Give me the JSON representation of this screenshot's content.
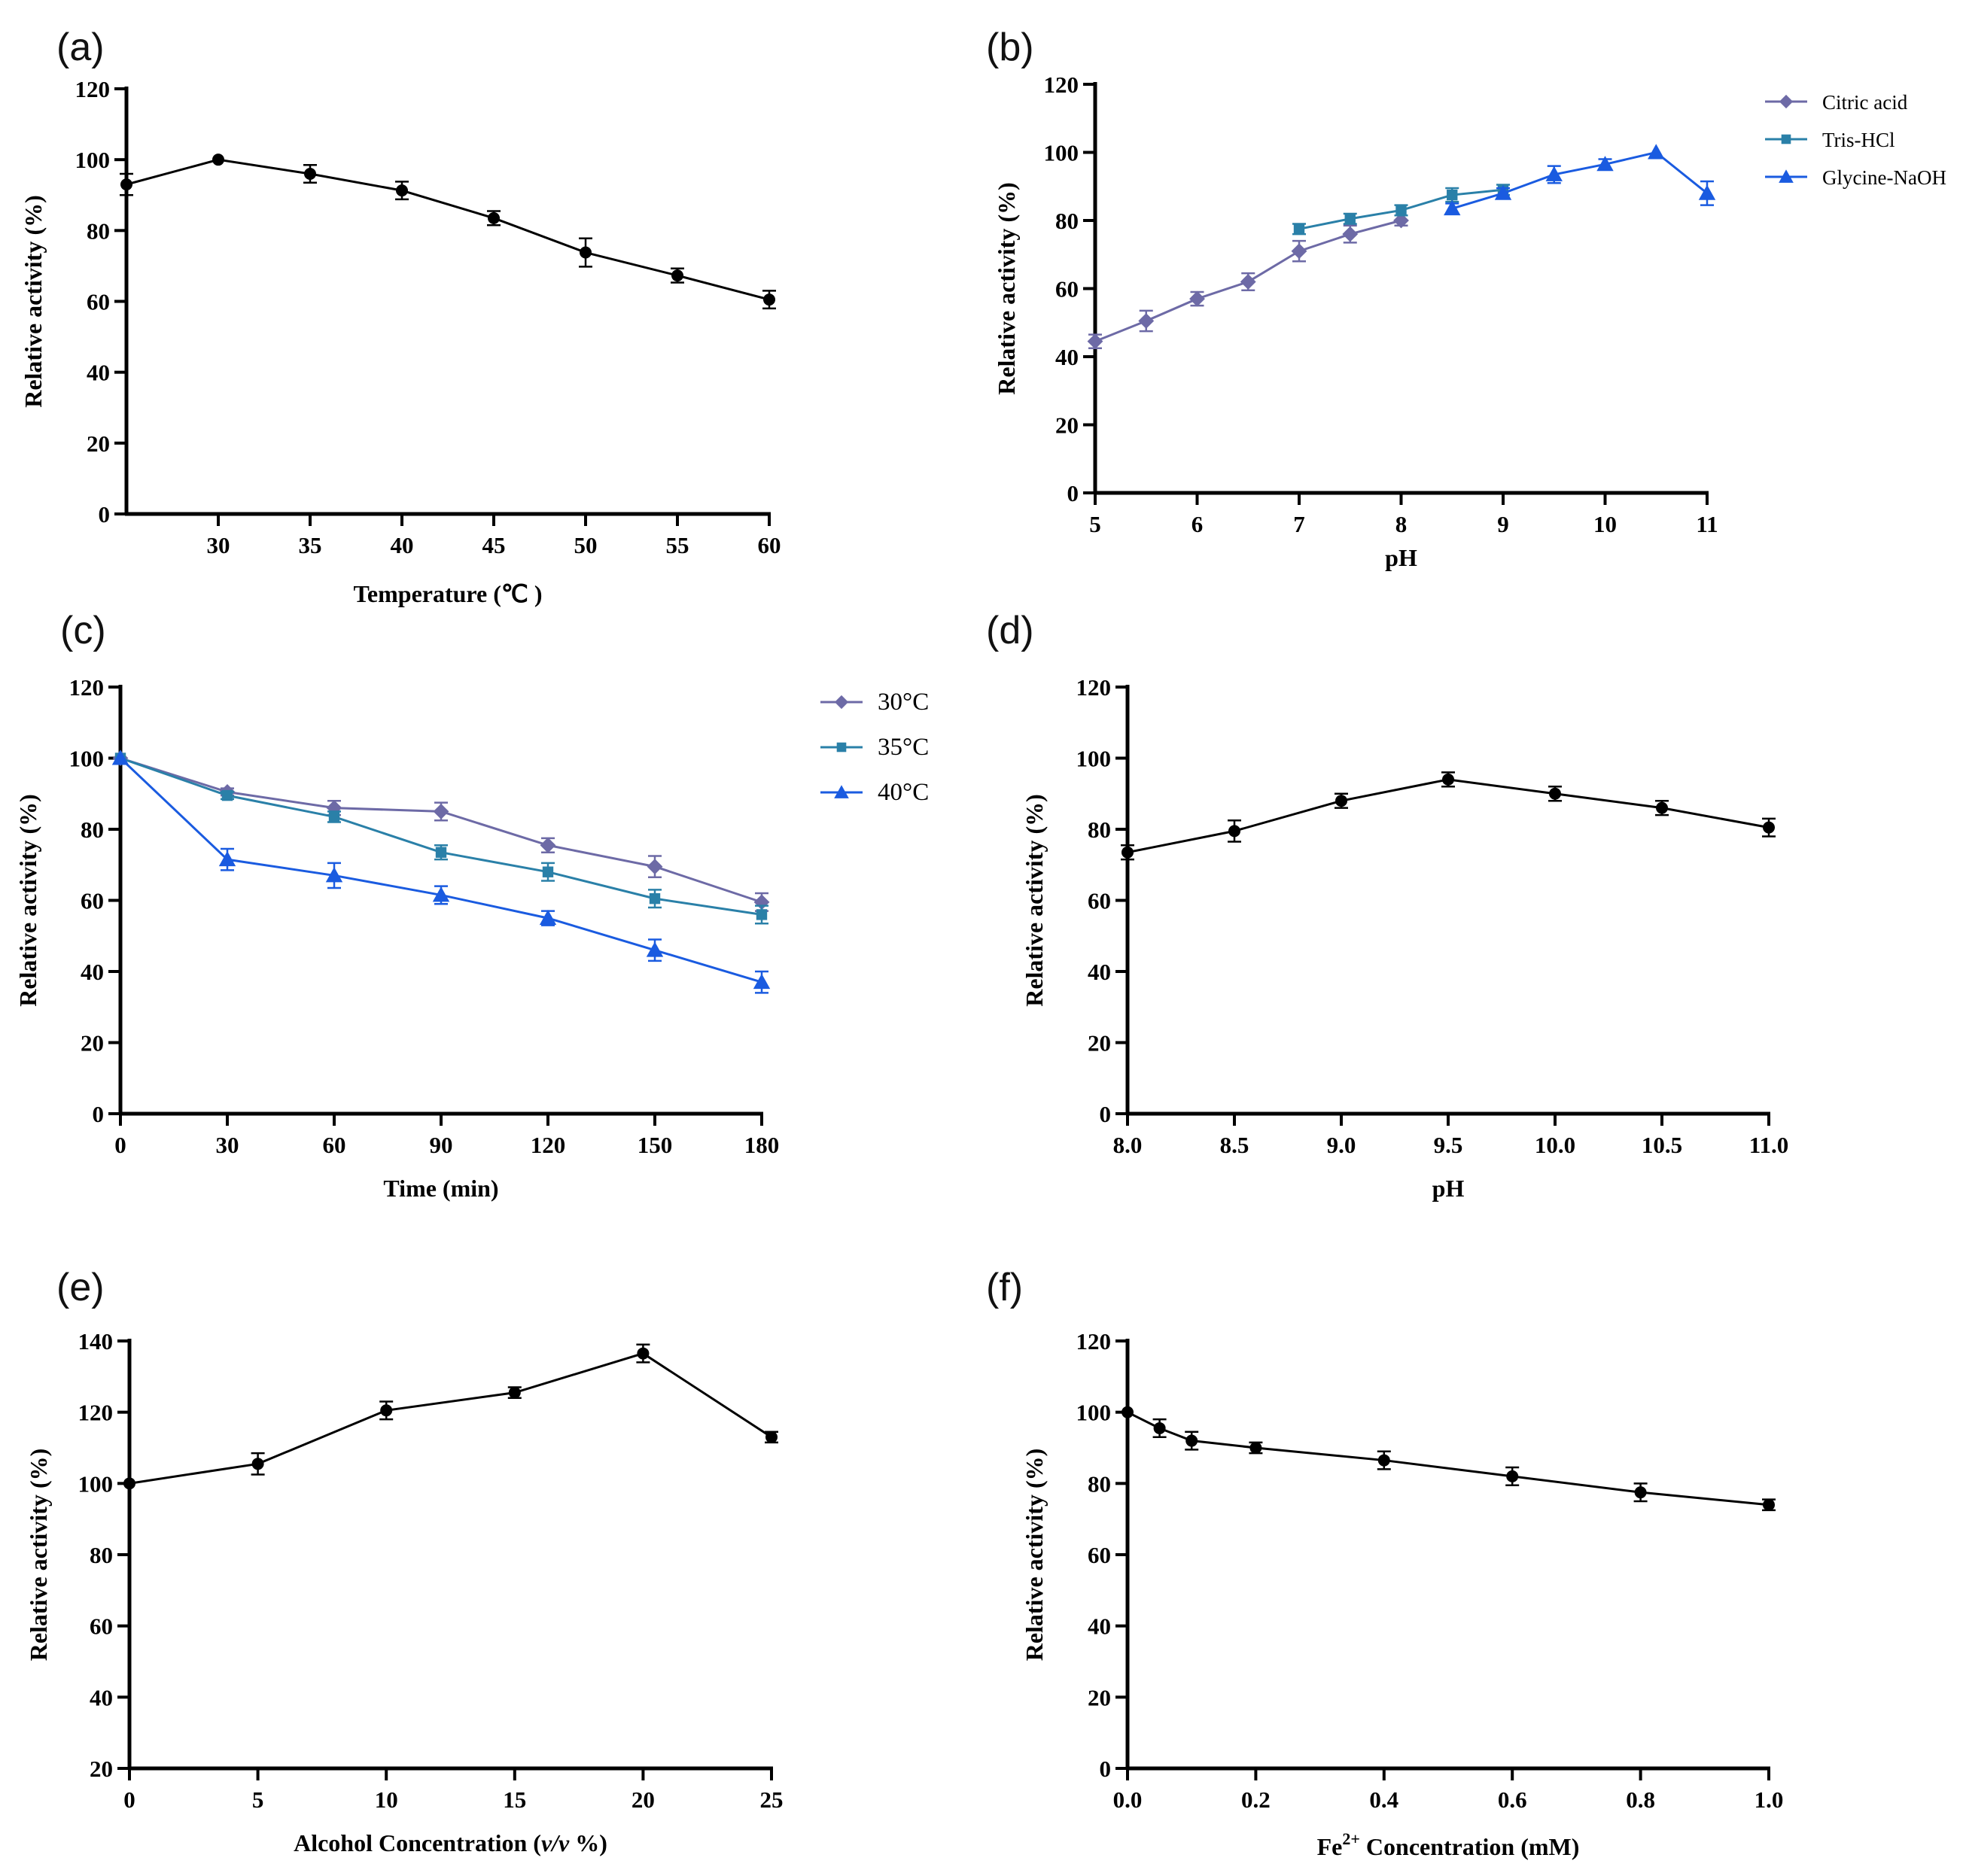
{
  "chart_data": [
    {
      "id": "a",
      "type": "line",
      "panel_label": "(a)",
      "xlabel": "Temperature (℃ )",
      "ylabel": "Relative activity (%)",
      "xlim": [
        25,
        60
      ],
      "ylim": [
        0,
        120
      ],
      "xticks": [
        30,
        35,
        40,
        45,
        50,
        55,
        60
      ],
      "xtick_labels": [
        "30",
        "35",
        "40",
        "45",
        "50",
        "55",
        "60"
      ],
      "yticks": [
        0,
        20,
        40,
        60,
        80,
        100,
        120
      ],
      "ytick_labels": [
        "0",
        "20",
        "40",
        "60",
        "80",
        "100",
        "120"
      ],
      "legend": false,
      "series": [
        {
          "name": "activity",
          "color": "#000000",
          "marker": "circle",
          "x": [
            25,
            30,
            35,
            40,
            45,
            50,
            55,
            60
          ],
          "y": [
            93,
            100,
            96,
            91.3,
            83.5,
            73.8,
            67.3,
            60.5
          ],
          "err": [
            3,
            0,
            2.5,
            2.5,
            2,
            4,
            2,
            2.5
          ]
        }
      ]
    },
    {
      "id": "b",
      "type": "line",
      "panel_label": "(b)",
      "xlabel": "pH",
      "ylabel": "Relative activity (%)",
      "xlim": [
        5,
        11
      ],
      "ylim": [
        0,
        120
      ],
      "xticks": [
        5,
        6,
        7,
        8,
        9,
        10,
        11
      ],
      "xtick_labels": [
        "5",
        "6",
        "7",
        "8",
        "9",
        "10",
        "11"
      ],
      "yticks": [
        0,
        20,
        40,
        60,
        80,
        100,
        120
      ],
      "ytick_labels": [
        "0",
        "20",
        "40",
        "60",
        "80",
        "100",
        "120"
      ],
      "legend": true,
      "legend_position": "top-right",
      "series": [
        {
          "name": "Citric acid",
          "color": "#6d6aa6",
          "marker": "diamond",
          "x": [
            5,
            5.5,
            6,
            6.5,
            7,
            7.5,
            8
          ],
          "y": [
            44.5,
            50.5,
            57,
            62,
            71,
            76,
            80
          ],
          "err": [
            2,
            3,
            2,
            2.5,
            3,
            2.5,
            1.5
          ]
        },
        {
          "name": "Tris-HCl",
          "color": "#2a80a8",
          "marker": "square",
          "x": [
            7,
            7.5,
            8,
            8.5,
            9
          ],
          "y": [
            77.5,
            80.5,
            83,
            87.5,
            89
          ],
          "err": [
            1.5,
            1.5,
            1.5,
            2,
            1.5
          ]
        },
        {
          "name": "Glycine-NaOH",
          "color": "#1a5be0",
          "marker": "triangle",
          "x": [
            8.5,
            9,
            9.5,
            10,
            10.5,
            11
          ],
          "y": [
            83.5,
            88,
            93.5,
            96.5,
            100,
            88
          ],
          "err": [
            1.5,
            1.5,
            2.5,
            1.5,
            0,
            3.5
          ]
        }
      ]
    },
    {
      "id": "c",
      "type": "line",
      "panel_label": "(c)",
      "xlabel": "Time (min)",
      "ylabel": "Relative activity (%)",
      "xlim": [
        0,
        180
      ],
      "ylim": [
        0,
        120
      ],
      "xticks": [
        0,
        30,
        60,
        90,
        120,
        150,
        180
      ],
      "xtick_labels": [
        "0",
        "30",
        "60",
        "90",
        "120",
        "150",
        "180"
      ],
      "yticks": [
        0,
        20,
        40,
        60,
        80,
        100,
        120
      ],
      "ytick_labels": [
        "0",
        "20",
        "40",
        "60",
        "80",
        "100",
        "120"
      ],
      "legend": true,
      "legend_position": "top-right",
      "series": [
        {
          "name": "30°C",
          "color": "#6d6aa6",
          "marker": "diamond",
          "x": [
            0,
            30,
            60,
            90,
            120,
            150,
            180
          ],
          "y": [
            100,
            90.5,
            86,
            85,
            75.5,
            69.5,
            59.5
          ],
          "err": [
            0,
            1,
            2,
            2.5,
            2,
            3,
            2.5
          ]
        },
        {
          "name": "35°C",
          "color": "#2a80a8",
          "marker": "square",
          "x": [
            0,
            30,
            60,
            90,
            120,
            150,
            180
          ],
          "y": [
            100,
            89.5,
            83.5,
            73.5,
            68,
            60.5,
            56
          ],
          "err": [
            0,
            1,
            1.5,
            2,
            2.5,
            2.5,
            2.5
          ]
        },
        {
          "name": "40°C",
          "color": "#1a5be0",
          "marker": "triangle",
          "x": [
            0,
            30,
            60,
            90,
            120,
            150,
            180
          ],
          "y": [
            100,
            71.5,
            67,
            61.5,
            55,
            46,
            37
          ],
          "err": [
            0,
            3,
            3.5,
            2.5,
            2,
            3,
            3
          ]
        }
      ]
    },
    {
      "id": "d",
      "type": "line",
      "panel_label": "(d)",
      "xlabel": "pH",
      "ylabel": "Relative activity (%)",
      "xlim": [
        8,
        11
      ],
      "ylim": [
        0,
        120
      ],
      "xticks": [
        8,
        8.5,
        9,
        9.5,
        10,
        10.5,
        11
      ],
      "xtick_labels": [
        "8.0",
        "8.5",
        "9.0",
        "9.5",
        "10.0",
        "10.5",
        "11.0"
      ],
      "yticks": [
        0,
        20,
        40,
        60,
        80,
        100,
        120
      ],
      "ytick_labels": [
        "0",
        "20",
        "40",
        "60",
        "80",
        "100",
        "120"
      ],
      "legend": false,
      "series": [
        {
          "name": "activity",
          "color": "#000000",
          "marker": "circle",
          "x": [
            8,
            8.5,
            9,
            9.5,
            10,
            10.5,
            11
          ],
          "y": [
            73.5,
            79.5,
            88,
            94,
            90,
            86,
            80.5
          ],
          "err": [
            2,
            3,
            2,
            2,
            2,
            2,
            2.5
          ]
        }
      ]
    },
    {
      "id": "e",
      "type": "line",
      "panel_label": "(e)",
      "xlabel": "Alcohol Concentration (v/v %)",
      "xlabel_parts": [
        "Alcohol Concentration (",
        "v/v",
        " %)"
      ],
      "ylabel": "Relative activity (%)",
      "xlim": [
        0,
        25
      ],
      "ylim": [
        20,
        140
      ],
      "xticks": [
        0,
        5,
        10,
        15,
        20,
        25
      ],
      "xtick_labels": [
        "0",
        "5",
        "10",
        "15",
        "20",
        "25"
      ],
      "yticks": [
        20,
        40,
        60,
        80,
        100,
        120,
        140
      ],
      "ytick_labels": [
        "20",
        "40",
        "60",
        "80",
        "100",
        "120",
        "140"
      ],
      "legend": false,
      "series": [
        {
          "name": "activity",
          "color": "#000000",
          "marker": "circle",
          "x": [
            0,
            5,
            10,
            15,
            20,
            25
          ],
          "y": [
            100,
            105.5,
            120.5,
            125.5,
            136.5,
            113
          ],
          "err": [
            0,
            3,
            2.5,
            1.5,
            2.5,
            1.5
          ]
        }
      ]
    },
    {
      "id": "f",
      "type": "line",
      "panel_label": "(f)",
      "xlabel": "Fe2+ Concentration (mM)",
      "xlabel_parts": [
        "Fe",
        "2+",
        " Concentration (mM)"
      ],
      "ylabel": "Relative activity (%)",
      "xlim": [
        0,
        1
      ],
      "ylim": [
        0,
        120
      ],
      "xticks": [
        0,
        0.2,
        0.4,
        0.6,
        0.8,
        1.0
      ],
      "xtick_labels": [
        "0.0",
        "0.2",
        "0.4",
        "0.6",
        "0.8",
        "1.0"
      ],
      "yticks": [
        0,
        20,
        40,
        60,
        80,
        100,
        120
      ],
      "ytick_labels": [
        "0",
        "20",
        "40",
        "60",
        "80",
        "100",
        "120"
      ],
      "legend": false,
      "series": [
        {
          "name": "activity",
          "color": "#000000",
          "marker": "circle",
          "x": [
            0,
            0.05,
            0.1,
            0.2,
            0.4,
            0.6,
            0.8,
            1.0
          ],
          "y": [
            100,
            95.5,
            92,
            90,
            86.5,
            82,
            77.5,
            74
          ],
          "err": [
            0,
            2.5,
            2.5,
            1.5,
            2.5,
            2.5,
            2.5,
            1.5
          ]
        }
      ]
    }
  ]
}
